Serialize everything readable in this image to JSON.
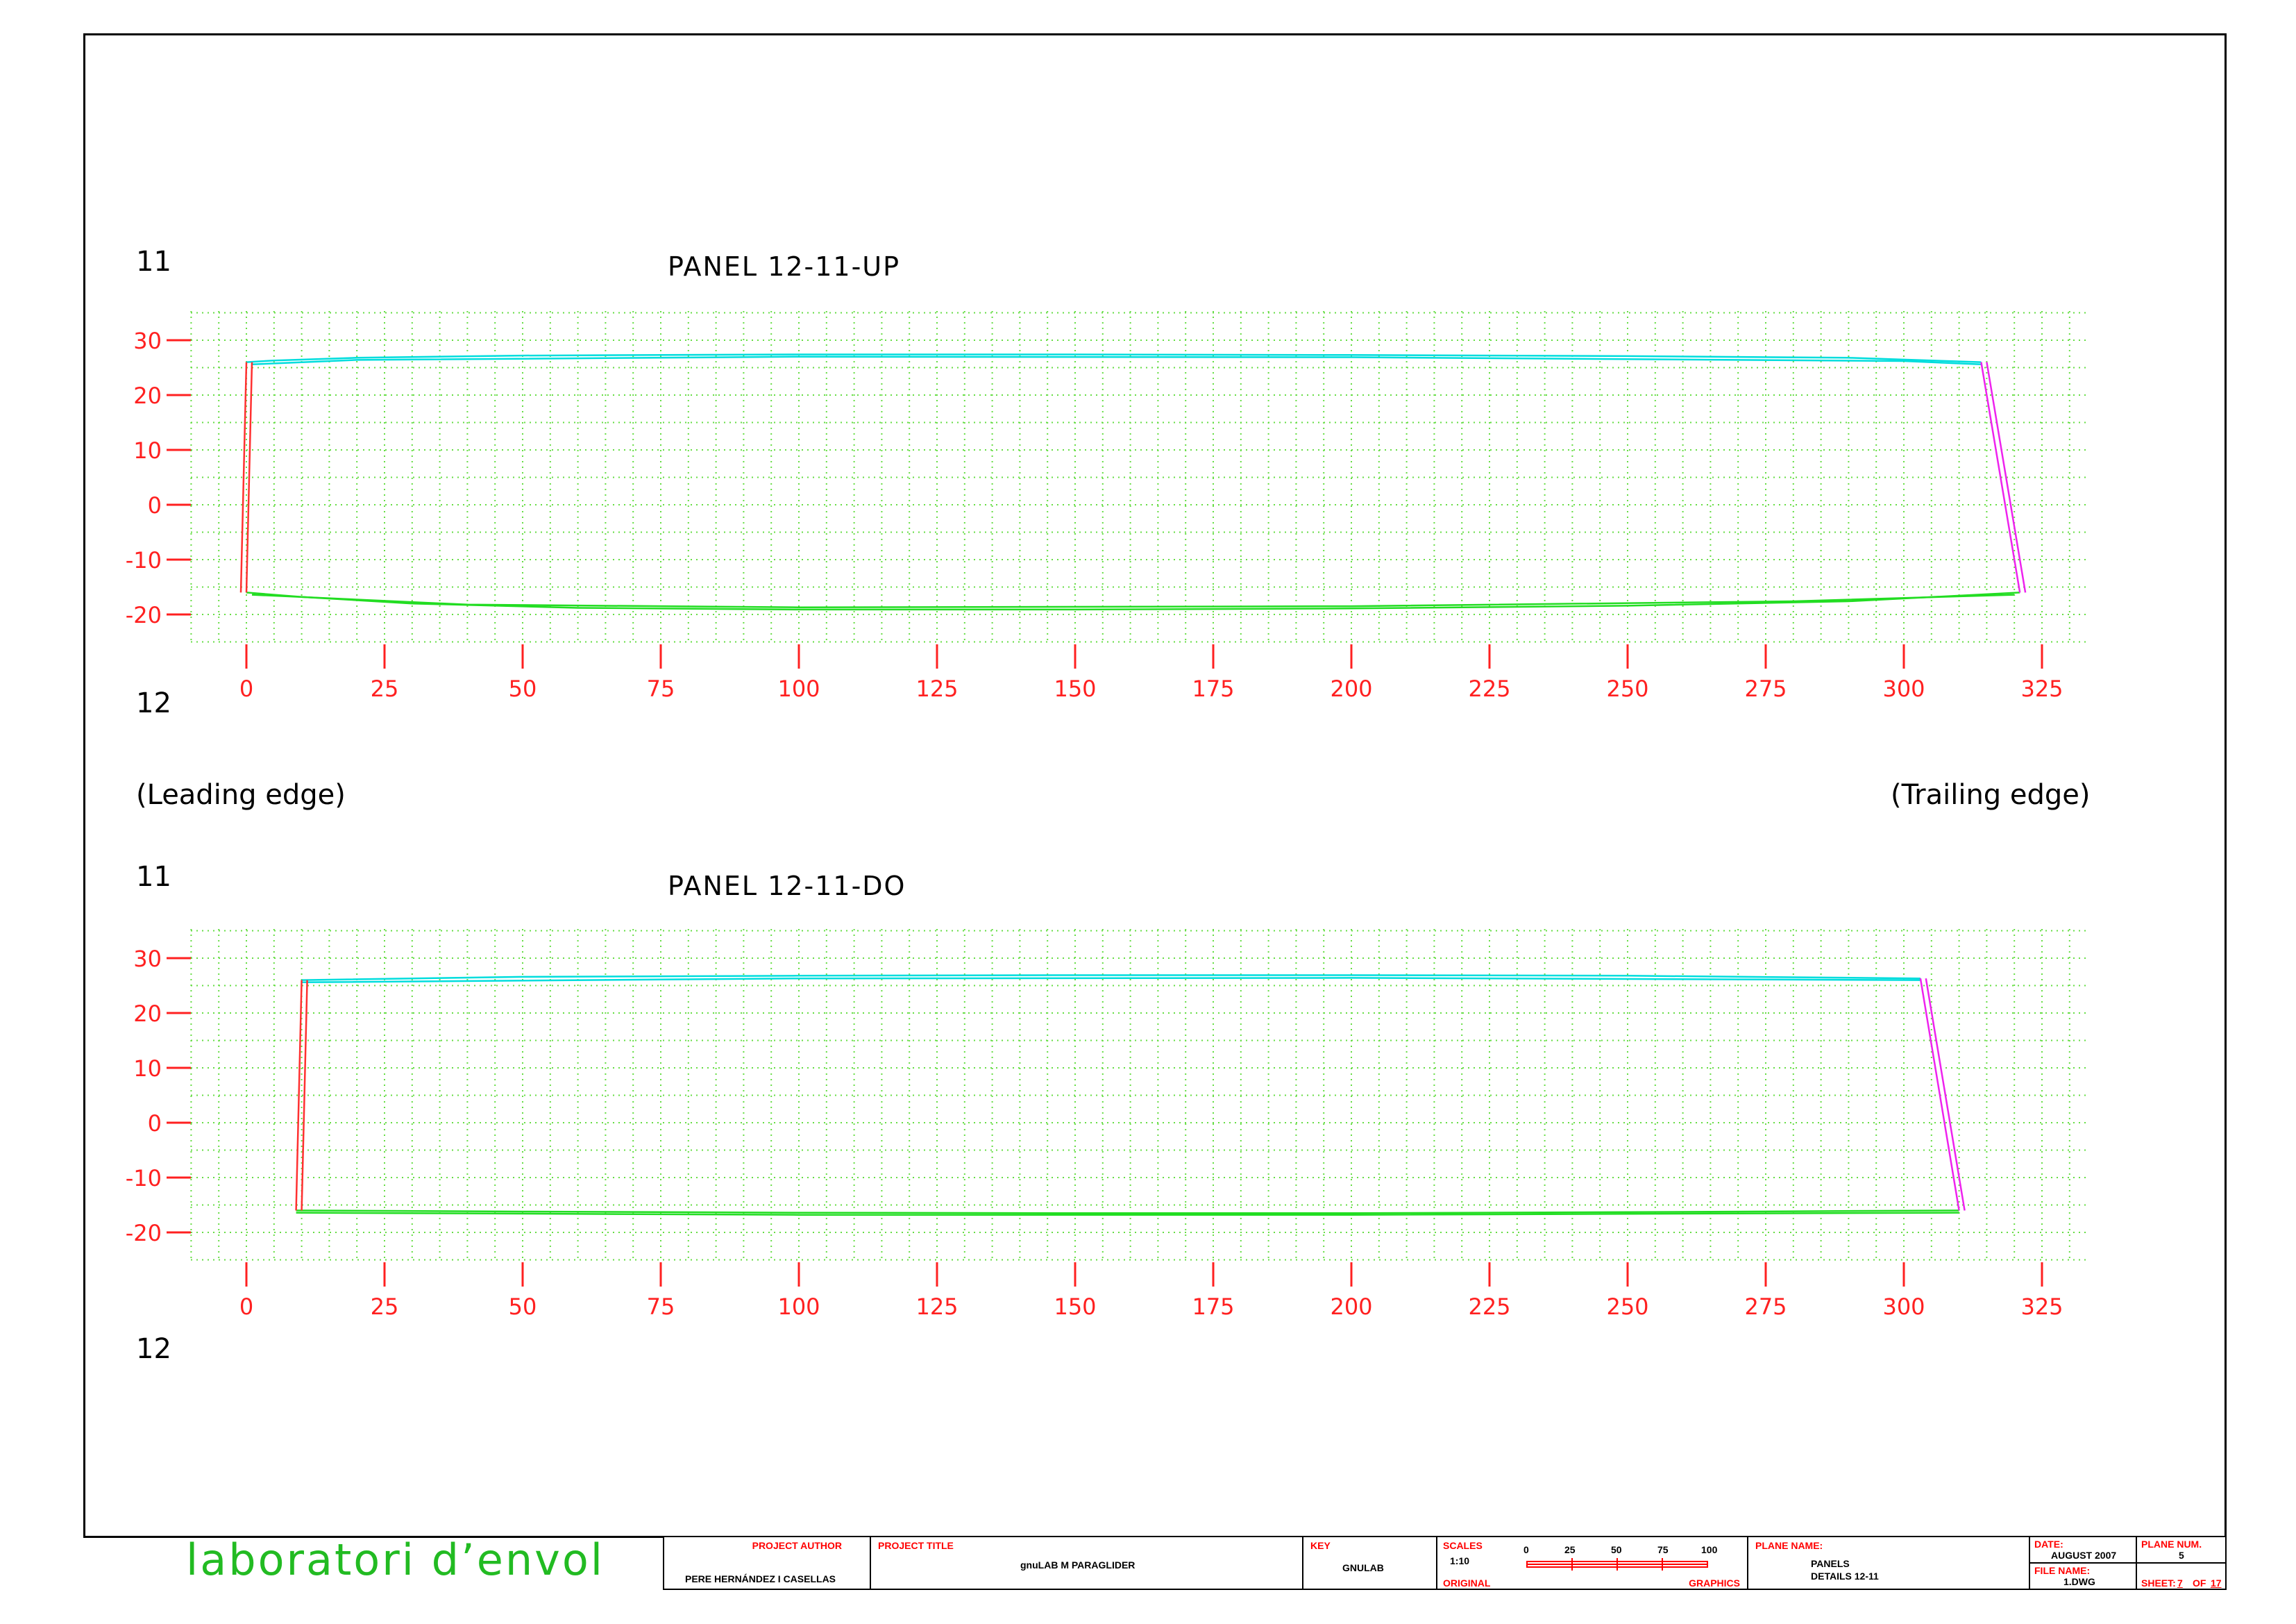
{
  "panels": [
    {
      "title": "PANEL 12-11-UP",
      "rib_top": "11",
      "rib_bottom": "12",
      "chart_data": {
        "type": "line",
        "xlim": [
          -10,
          335
        ],
        "ylim": [
          -25,
          35
        ],
        "x_ticks": [
          0,
          25,
          50,
          75,
          100,
          125,
          150,
          175,
          200,
          225,
          250,
          275,
          300,
          325
        ],
        "y_ticks": [
          30,
          20,
          10,
          0,
          -10,
          -20
        ],
        "grid": true,
        "series": [
          {
            "color": "#00dddd",
            "points": [
              [
                0,
                26
              ],
              [
                5,
                26.3
              ],
              [
                20,
                26.8
              ],
              [
                50,
                27.2
              ],
              [
                100,
                27.4
              ],
              [
                150,
                27.4
              ],
              [
                200,
                27.3
              ],
              [
                250,
                27.1
              ],
              [
                290,
                26.8
              ],
              [
                314,
                26
              ]
            ]
          },
          {
            "color": "#00dddd",
            "points": [
              [
                1,
                25.6
              ],
              [
                20,
                26.4
              ],
              [
                100,
                27
              ],
              [
                200,
                26.9
              ],
              [
                300,
                26.2
              ],
              [
                314,
                25.6
              ]
            ]
          },
          {
            "color": "#22dd22",
            "points": [
              [
                0,
                -16
              ],
              [
                10,
                -16.8
              ],
              [
                30,
                -18
              ],
              [
                60,
                -18.8
              ],
              [
                100,
                -19.1
              ],
              [
                150,
                -19.1
              ],
              [
                200,
                -18.9
              ],
              [
                250,
                -18.4
              ],
              [
                290,
                -17.6
              ],
              [
                321,
                -16
              ]
            ]
          },
          {
            "color": "#22dd22",
            "points": [
              [
                1,
                -16.4
              ],
              [
                40,
                -18.2
              ],
              [
                100,
                -18.7
              ],
              [
                200,
                -18.5
              ],
              [
                280,
                -17.6
              ],
              [
                320,
                -16.4
              ]
            ]
          },
          {
            "color": "#ff3030",
            "points": [
              [
                0,
                26
              ],
              [
                -1,
                -16
              ]
            ]
          },
          {
            "color": "#ff3030",
            "points": [
              [
                1,
                26
              ],
              [
                0,
                -16
              ]
            ]
          },
          {
            "color": "#ee22ee",
            "points": [
              [
                314,
                26
              ],
              [
                321,
                -16
              ]
            ]
          },
          {
            "color": "#ee22ee",
            "points": [
              [
                315,
                26
              ],
              [
                322,
                -16
              ]
            ]
          }
        ]
      }
    },
    {
      "title": "PANEL 12-11-DO",
      "rib_top": "11",
      "rib_bottom": "12",
      "chart_data": {
        "type": "line",
        "xlim": [
          -10,
          335
        ],
        "ylim": [
          -25,
          35
        ],
        "x_ticks": [
          0,
          25,
          50,
          75,
          100,
          125,
          150,
          175,
          200,
          225,
          250,
          275,
          300,
          325
        ],
        "y_ticks": [
          30,
          20,
          10,
          0,
          -10,
          -20
        ],
        "grid": true,
        "series": [
          {
            "color": "#00dddd",
            "points": [
              [
                10,
                26
              ],
              [
                50,
                26.6
              ],
              [
                100,
                26.8
              ],
              [
                150,
                26.9
              ],
              [
                200,
                26.9
              ],
              [
                250,
                26.8
              ],
              [
                303,
                26.3
              ]
            ]
          },
          {
            "color": "#00dddd",
            "points": [
              [
                10,
                25.6
              ],
              [
                100,
                26.3
              ],
              [
                200,
                26.4
              ],
              [
                303,
                26
              ]
            ]
          },
          {
            "color": "#22dd22",
            "points": [
              [
                9,
                -16
              ],
              [
                50,
                -16.2
              ],
              [
                100,
                -16.4
              ],
              [
                150,
                -16.5
              ],
              [
                200,
                -16.5
              ],
              [
                250,
                -16.3
              ],
              [
                310,
                -16
              ]
            ]
          },
          {
            "color": "#22dd22",
            "points": [
              [
                9,
                -16.4
              ],
              [
                100,
                -16.8
              ],
              [
                200,
                -16.8
              ],
              [
                310,
                -16.4
              ]
            ]
          },
          {
            "color": "#ff3030",
            "points": [
              [
                10,
                26
              ],
              [
                9,
                -16
              ]
            ]
          },
          {
            "color": "#ff3030",
            "points": [
              [
                11,
                26
              ],
              [
                10,
                -16
              ]
            ]
          },
          {
            "color": "#ee22ee",
            "points": [
              [
                303,
                26.3
              ],
              [
                310,
                -16
              ]
            ]
          },
          {
            "color": "#ee22ee",
            "points": [
              [
                304,
                26.3
              ],
              [
                311,
                -16
              ]
            ]
          }
        ]
      }
    }
  ],
  "edge_labels": {
    "leading": "(Leading edge)",
    "trailing": "(Trailing edge)"
  },
  "title_block": {
    "logo": "laboratori d’envol",
    "project_author_label": "PROJECT AUTHOR",
    "project_author": "PERE HERNÁNDEZ I CASELLAS",
    "project_title_label": "PROJECT TITLE",
    "project_title": "gnuLAB M PARAGLIDER",
    "key_label": "KEY",
    "key": "GNULAB",
    "scales_label": "SCALES",
    "scale": "1:10",
    "scale_bar_ticks": [
      "0",
      "25",
      "50",
      "75",
      "100"
    ],
    "original_label": "ORIGINAL",
    "graphics_label": "GRAPHICS",
    "plane_name_label": "PLANE NAME:",
    "plane_name_1": "PANELS",
    "plane_name_2": "DETAILS 12-11",
    "date_label": "DATE:",
    "date": "AUGUST 2007",
    "file_name_label": "FILE NAME:",
    "file_name": "1.DWG",
    "plane_num_label": "PLANE NUM.",
    "plane_num": "5",
    "sheet_label": "SHEET:",
    "sheet": "7",
    "sheet_of": "OF",
    "sheet_total": "17"
  }
}
